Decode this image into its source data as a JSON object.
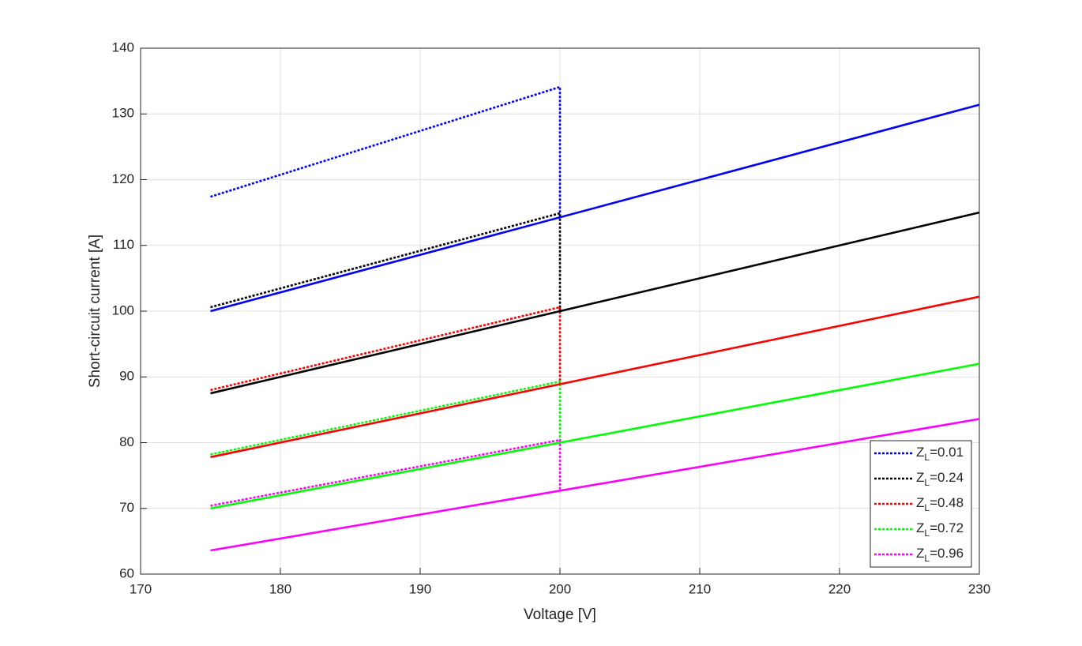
{
  "chart_data": {
    "type": "line",
    "xlabel": "Voltage [V]",
    "ylabel": "Short-circuit current [A]",
    "xlim": [
      170,
      230
    ],
    "xticks": [
      170,
      180,
      190,
      200,
      210,
      220,
      230
    ],
    "ylim": [
      60,
      140
    ],
    "yticks": [
      60,
      70,
      80,
      90,
      100,
      110,
      120,
      130,
      140
    ],
    "grid": true,
    "legend": "southeast",
    "series": [
      {
        "name": "ZL=0.01",
        "color": "#0000ff",
        "style": "dotted",
        "x": [
          175,
          200,
          200
        ],
        "values": [
          117.4,
          134.1,
          114.3
        ]
      },
      {
        "name": "ZL=0.24",
        "color": "#000000",
        "style": "dotted",
        "x": [
          175,
          200,
          200
        ],
        "values": [
          100.6,
          114.9,
          100
        ]
      },
      {
        "name": "ZL=0.48",
        "color": "#ff0000",
        "style": "dotted",
        "x": [
          175,
          200,
          200
        ],
        "values": [
          88.0,
          100.6,
          88.9
        ]
      },
      {
        "name": "ZL=0.72",
        "color": "#00ff00",
        "style": "dotted",
        "x": [
          175,
          200,
          200
        ],
        "values": [
          78.2,
          89.3,
          80
        ]
      },
      {
        "name": "ZL=0.96",
        "color": "#ff00ff",
        "style": "dotted",
        "x": [
          175,
          200,
          200
        ],
        "values": [
          70.4,
          80.4,
          72.9
        ]
      },
      {
        "color": "#0000ff",
        "style": "solid",
        "x": [
          175,
          230
        ],
        "values": [
          100,
          131.4
        ]
      },
      {
        "color": "#000000",
        "style": "solid",
        "x": [
          175,
          230
        ],
        "values": [
          87.5,
          115
        ]
      },
      {
        "color": "#ff0000",
        "style": "solid",
        "x": [
          175,
          230
        ],
        "values": [
          77.8,
          102.2
        ]
      },
      {
        "color": "#00ff00",
        "style": "solid",
        "x": [
          175,
          230
        ],
        "values": [
          70,
          92
        ]
      },
      {
        "color": "#ff00ff",
        "style": "solid",
        "x": [
          175,
          230
        ],
        "values": [
          63.6,
          83.6
        ]
      }
    ]
  }
}
